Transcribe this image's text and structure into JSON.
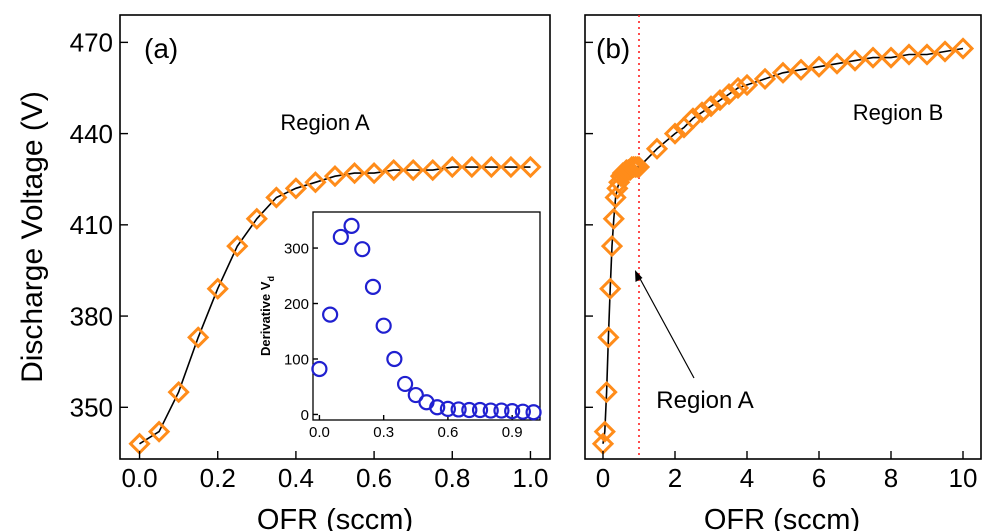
{
  "chart_data": [
    {
      "panel": "(a)",
      "type": "scatter",
      "xlabel": "OFR (sccm)",
      "ylabel": "Discharge Voltage (V)",
      "xlim": [
        -0.05,
        1.05
      ],
      "ylim": [
        333,
        479
      ],
      "xticks": [
        "0.0",
        "0.2",
        "0.4",
        "0.6",
        "0.8",
        "1.0"
      ],
      "yticks": [
        "350",
        "380",
        "410",
        "440",
        "470"
      ],
      "annotation": "Region A",
      "annotation_color": "#ff2020",
      "marker": "diamond",
      "marker_color": "#ff8c1a",
      "series": [
        {
          "x": [
            0.0,
            0.05,
            0.1,
            0.15,
            0.2,
            0.25,
            0.3,
            0.35,
            0.4,
            0.45,
            0.5,
            0.55,
            0.6,
            0.65,
            0.7,
            0.75,
            0.8,
            0.85,
            0.9,
            0.95,
            1.0
          ],
          "y": [
            338,
            342,
            355,
            373,
            389,
            403,
            412,
            419,
            422,
            424,
            426,
            427,
            427,
            428,
            428,
            428,
            429,
            429,
            429,
            429,
            429
          ]
        }
      ],
      "inset": {
        "type": "scatter",
        "ylabel": "Derivative V",
        "ylabel_sub": "d",
        "xlim": [
          -0.03,
          1.03
        ],
        "ylim": [
          -10,
          365
        ],
        "xticks": [
          "0.0",
          "0.3",
          "0.6",
          "0.9"
        ],
        "yticks": [
          "0",
          "100",
          "200",
          "300"
        ],
        "marker": "circle",
        "marker_color": "#2020d0",
        "x": [
          0.0,
          0.05,
          0.1,
          0.15,
          0.2,
          0.25,
          0.3,
          0.35,
          0.4,
          0.45,
          0.5,
          0.55,
          0.6,
          0.65,
          0.7,
          0.75,
          0.8,
          0.85,
          0.9,
          0.95,
          1.0
        ],
        "y": [
          82,
          180,
          320,
          340,
          298,
          230,
          160,
          100,
          55,
          35,
          22,
          13,
          10,
          9,
          8,
          8,
          7,
          7,
          6,
          5,
          4
        ]
      }
    },
    {
      "panel": "(b)",
      "type": "scatter",
      "xlabel": "OFR (sccm)",
      "ylabel": "",
      "xlim": [
        -0.5,
        10.5
      ],
      "ylim": [
        333,
        479
      ],
      "xticks": [
        "0",
        "2",
        "4",
        "6",
        "8",
        "10"
      ],
      "yticks": [],
      "annotation": "Region B",
      "annotation_color": "#000000",
      "arrow_label": "Region A",
      "arrow_label_color": "#ff2020",
      "vline_x": 1.0,
      "vline_color": "#ff2020",
      "marker": "diamond",
      "marker_color": "#ff8c1a",
      "series": [
        {
          "x": [
            0.0,
            0.05,
            0.1,
            0.15,
            0.2,
            0.25,
            0.3,
            0.35,
            0.4,
            0.45,
            0.5,
            0.55,
            0.6,
            0.65,
            0.7,
            0.75,
            0.8,
            0.85,
            0.9,
            0.95,
            1.0,
            1.5,
            2.0,
            2.25,
            2.5,
            2.75,
            3.0,
            3.25,
            3.5,
            3.75,
            4.0,
            4.5,
            5.0,
            5.5,
            6.0,
            6.5,
            7.0,
            7.5,
            8.0,
            8.5,
            9.0,
            9.5,
            10.0
          ],
          "y": [
            338,
            342,
            355,
            373,
            389,
            403,
            412,
            419,
            422,
            424,
            426,
            427,
            427,
            428,
            428,
            428,
            429,
            429,
            429,
            429,
            429,
            435,
            440,
            442,
            445,
            447,
            449,
            451,
            453,
            455,
            456,
            458,
            460,
            461,
            462,
            463,
            464,
            465,
            465,
            466,
            466,
            467,
            468
          ]
        }
      ]
    }
  ]
}
